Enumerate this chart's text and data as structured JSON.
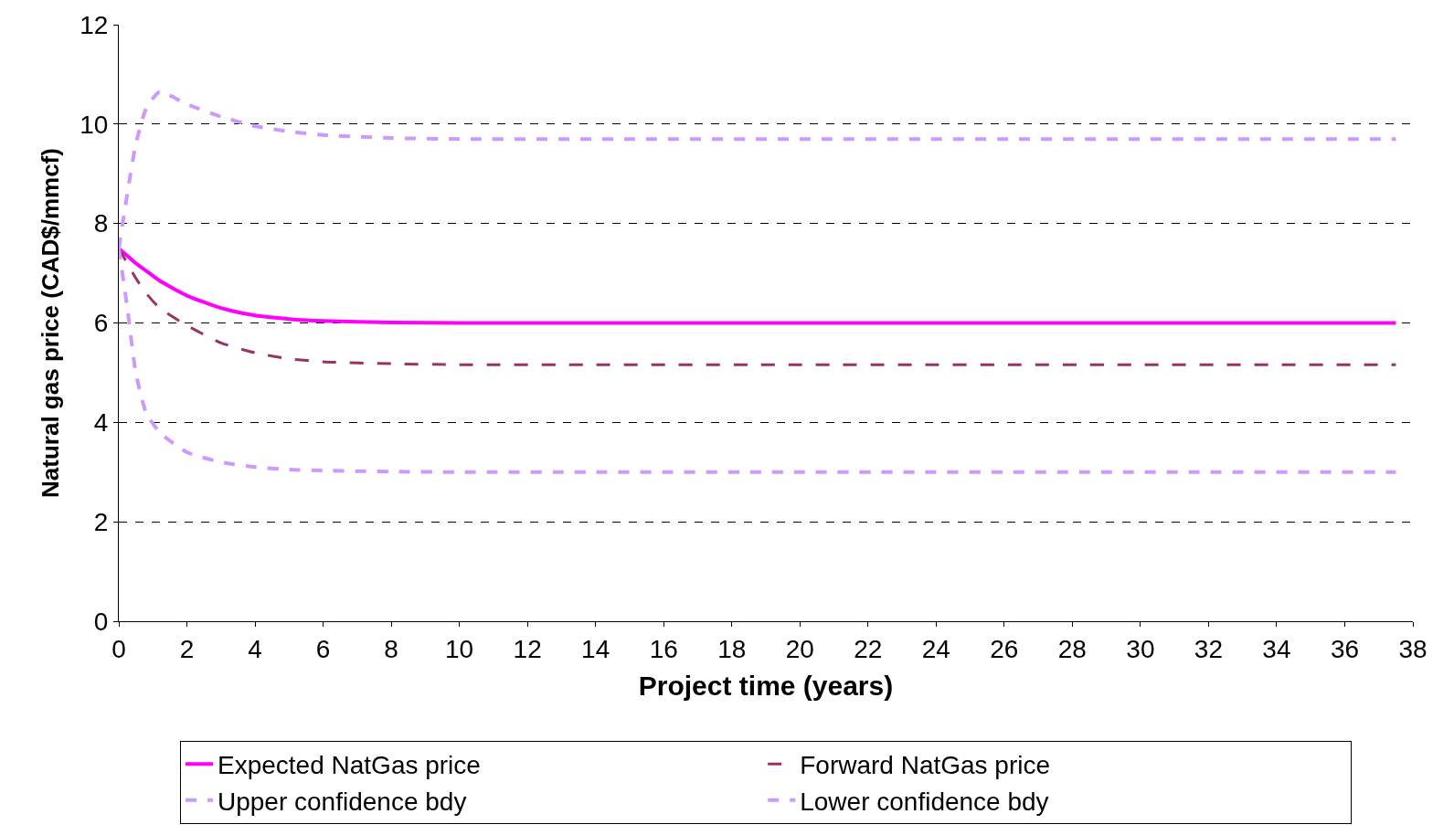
{
  "chart_data": {
    "type": "line",
    "xlabel": "Project time (years)",
    "ylabel": "Natural gas price (CAD$/mmcf)",
    "xlim": [
      0,
      38
    ],
    "xticks": [
      0,
      2,
      4,
      6,
      8,
      10,
      12,
      14,
      16,
      18,
      20,
      22,
      24,
      26,
      28,
      30,
      32,
      34,
      36,
      38
    ],
    "ylim": [
      0,
      12
    ],
    "yticks": [
      0,
      2,
      4,
      6,
      8,
      10,
      12
    ],
    "grid": "y",
    "legend": "bottom",
    "x": [
      0,
      0.25,
      0.5,
      0.8,
      1.2,
      2,
      3,
      4,
      5,
      6,
      8,
      10,
      14,
      20,
      30,
      37.5
    ],
    "series": [
      {
        "name": "Expected NatGas price",
        "color": "#ff00ff",
        "line_style": "solid",
        "values": [
          7.5,
          7.35,
          7.2,
          7.05,
          6.85,
          6.55,
          6.3,
          6.15,
          6.08,
          6.04,
          6.01,
          6.0,
          6.0,
          6.0,
          6.0,
          6.0
        ]
      },
      {
        "name": "Forward NatGas price",
        "color": "#993366",
        "line_style": "dashed",
        "values": [
          7.5,
          7.2,
          6.9,
          6.6,
          6.3,
          5.95,
          5.6,
          5.4,
          5.28,
          5.22,
          5.18,
          5.16,
          5.16,
          5.16,
          5.16,
          5.16
        ]
      },
      {
        "name": "Upper confidence bdy",
        "color": "#cc99ff",
        "line_style": "dotted",
        "values": [
          7.5,
          8.6,
          9.6,
          10.3,
          10.65,
          10.4,
          10.15,
          9.96,
          9.85,
          9.78,
          9.72,
          9.7,
          9.7,
          9.7,
          9.7,
          9.7
        ]
      },
      {
        "name": "Lower confidence bdy",
        "color": "#cc99ff",
        "line_style": "dotted",
        "values": [
          7.5,
          6.3,
          5.0,
          4.2,
          3.8,
          3.4,
          3.2,
          3.1,
          3.05,
          3.03,
          3.01,
          3.0,
          3.0,
          3.0,
          3.0,
          3.0
        ]
      }
    ]
  }
}
